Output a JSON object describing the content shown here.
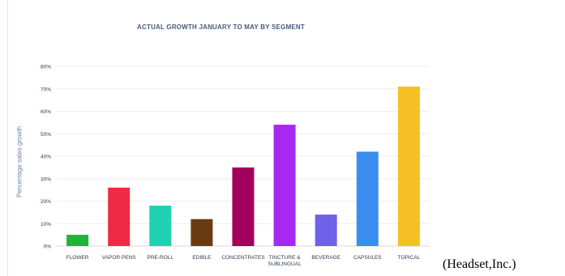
{
  "chart_data": {
    "type": "bar",
    "title": "ACTUAL GROWTH JANUARY TO MAY BY SEGMENT",
    "xlabel": "",
    "ylabel": "Percentage sales growth",
    "ylim": [
      0,
      80
    ],
    "yticks": [
      "0%",
      "10%",
      "20%",
      "30%",
      "40%",
      "50%",
      "60%",
      "70%",
      "80%"
    ],
    "grid": true,
    "categories": [
      [
        "FLOWER"
      ],
      [
        "VAPOR PENS"
      ],
      [
        "PRE-ROLL"
      ],
      [
        "EDIBLE"
      ],
      [
        "CONCENTRATES"
      ],
      [
        "TINCTURE &",
        "SUBLINGUAL"
      ],
      [
        "BEVERAGE"
      ],
      [
        "CAPSULES"
      ],
      [
        "TOPICAL"
      ]
    ],
    "values": [
      5,
      26,
      18,
      12,
      35,
      54,
      14,
      42,
      71
    ],
    "colors": [
      "#1fb33a",
      "#ee2a44",
      "#1fd0b2",
      "#6a3a12",
      "#a3005e",
      "#a629f0",
      "#6f62e8",
      "#3a8ef0",
      "#f5c024"
    ]
  },
  "source": "(Headset,Inc.)"
}
